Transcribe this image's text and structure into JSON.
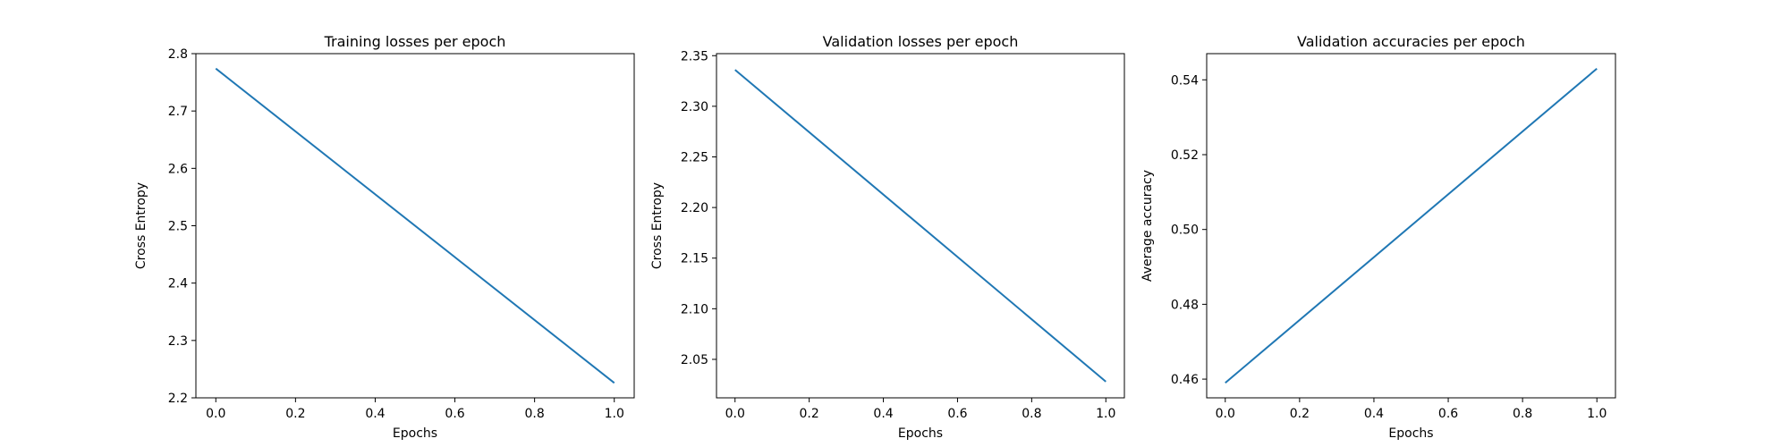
{
  "chart_data": [
    {
      "type": "line",
      "title": "Training losses per epoch",
      "xlabel": "Epochs",
      "ylabel": "Cross Entropy",
      "xlim": [
        -0.05,
        1.05
      ],
      "ylim": [
        2.2,
        2.8
      ],
      "xticks": [
        0.0,
        0.2,
        0.4,
        0.6,
        0.8,
        1.0
      ],
      "xtick_labels": [
        "0.0",
        "0.2",
        "0.4",
        "0.6",
        "0.8",
        "1.0"
      ],
      "yticks": [
        2.2,
        2.3,
        2.4,
        2.5,
        2.6,
        2.7,
        2.8
      ],
      "ytick_labels": [
        "2.2",
        "2.3",
        "2.4",
        "2.5",
        "2.6",
        "2.7",
        "2.8"
      ],
      "grid": false,
      "series": [
        {
          "x": [
            0.0,
            1.0
          ],
          "values": [
            2.774,
            2.226
          ],
          "color": "#1f77b4"
        }
      ]
    },
    {
      "type": "line",
      "title": "Validation losses per epoch",
      "xlabel": "Epochs",
      "ylabel": "Cross Entropy",
      "xlim": [
        -0.05,
        1.05
      ],
      "ylim": [
        2.012,
        2.352
      ],
      "xticks": [
        0.0,
        0.2,
        0.4,
        0.6,
        0.8,
        1.0
      ],
      "xtick_labels": [
        "0.0",
        "0.2",
        "0.4",
        "0.6",
        "0.8",
        "1.0"
      ],
      "yticks": [
        2.05,
        2.1,
        2.15,
        2.2,
        2.25,
        2.3,
        2.35
      ],
      "ytick_labels": [
        "2.05",
        "2.10",
        "2.15",
        "2.20",
        "2.25",
        "2.30",
        "2.35"
      ],
      "grid": false,
      "series": [
        {
          "x": [
            0.0,
            1.0
          ],
          "values": [
            2.336,
            2.028
          ],
          "color": "#1f77b4"
        }
      ]
    },
    {
      "type": "line",
      "title": "Validation accuracies per epoch",
      "xlabel": "Epochs",
      "ylabel": "Average accuracy",
      "xlim": [
        -0.05,
        1.05
      ],
      "ylim": [
        0.455,
        0.547
      ],
      "xticks": [
        0.0,
        0.2,
        0.4,
        0.6,
        0.8,
        1.0
      ],
      "xtick_labels": [
        "0.0",
        "0.2",
        "0.4",
        "0.6",
        "0.8",
        "1.0"
      ],
      "yticks": [
        0.46,
        0.48,
        0.5,
        0.52,
        0.54
      ],
      "ytick_labels": [
        "0.46",
        "0.48",
        "0.50",
        "0.52",
        "0.54"
      ],
      "grid": false,
      "series": [
        {
          "x": [
            0.0,
            1.0
          ],
          "values": [
            0.459,
            0.543
          ],
          "color": "#1f77b4"
        }
      ]
    }
  ]
}
